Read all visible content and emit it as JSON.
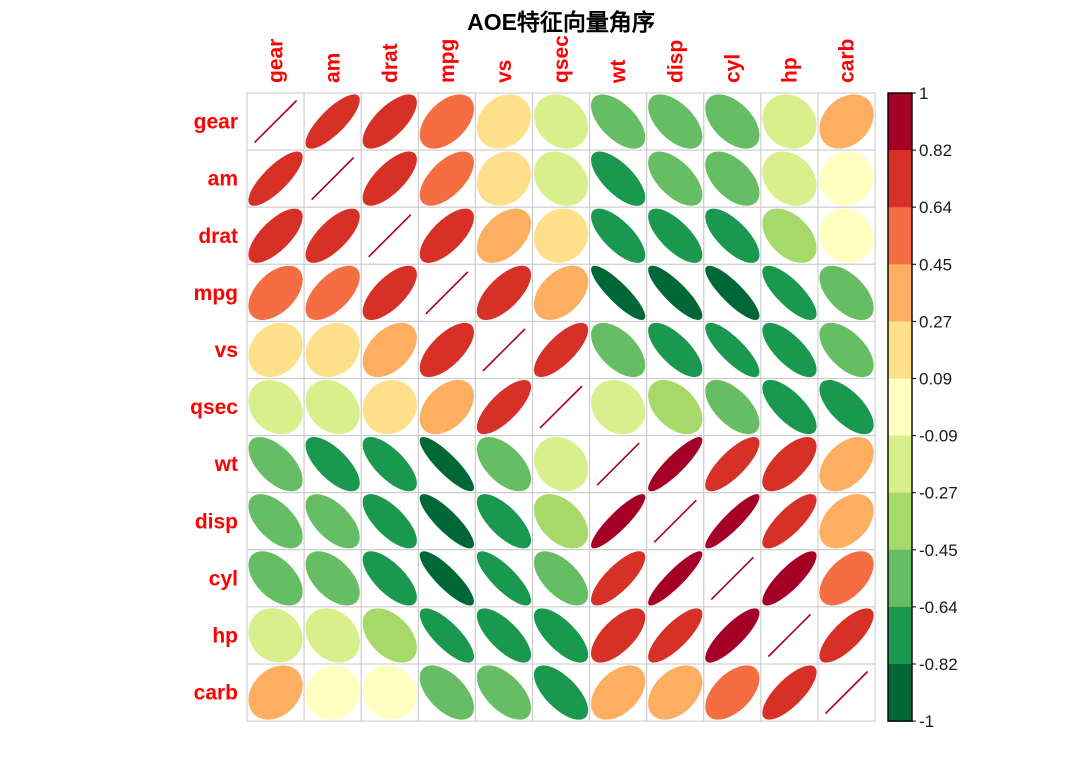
{
  "title": "AOE特征向量角序",
  "chart_data": {
    "type": "heatmap",
    "subtype": "correlation_ellipse_matrix",
    "ordering": "AOE",
    "title": "AOE特征向量角序",
    "variables": [
      "gear",
      "am",
      "drat",
      "mpg",
      "vs",
      "qsec",
      "wt",
      "disp",
      "cyl",
      "hp",
      "carb"
    ],
    "matrix": [
      [
        1.0,
        0.7941,
        0.6996,
        0.4803,
        0.206,
        -0.2127,
        -0.5832,
        -0.5556,
        -0.4927,
        -0.1257,
        0.2741
      ],
      [
        0.7941,
        1.0,
        0.7127,
        0.5998,
        0.1683,
        -0.2299,
        -0.6925,
        -0.5912,
        -0.5226,
        -0.2432,
        0.0575
      ],
      [
        0.6996,
        0.7127,
        1.0,
        0.6812,
        0.4403,
        0.0912,
        -0.7124,
        -0.7102,
        -0.6999,
        -0.4488,
        -0.0908
      ],
      [
        0.4803,
        0.5998,
        0.6812,
        1.0,
        0.664,
        0.4187,
        -0.8677,
        -0.8476,
        -0.8522,
        -0.7762,
        -0.5509
      ],
      [
        0.206,
        0.1683,
        0.4403,
        0.664,
        1.0,
        0.7445,
        -0.5549,
        -0.7104,
        -0.8108,
        -0.7231,
        -0.5696
      ],
      [
        -0.2127,
        -0.2299,
        0.0912,
        0.4187,
        0.7445,
        1.0,
        -0.1747,
        -0.4336,
        -0.5912,
        -0.7082,
        -0.6562
      ],
      [
        -0.5832,
        -0.6925,
        -0.7124,
        -0.8677,
        -0.5549,
        -0.1747,
        1.0,
        0.888,
        0.7825,
        0.6587,
        0.4276
      ],
      [
        -0.5556,
        -0.5912,
        -0.7102,
        -0.8476,
        -0.7104,
        -0.4336,
        0.888,
        1.0,
        0.902,
        0.7909,
        0.395
      ],
      [
        -0.4927,
        -0.5226,
        -0.6999,
        -0.8522,
        -0.8108,
        -0.5912,
        0.7825,
        0.902,
        1.0,
        0.8324,
        0.527
      ],
      [
        -0.1257,
        -0.2432,
        -0.4488,
        -0.7762,
        -0.7231,
        -0.7082,
        0.6587,
        0.7909,
        0.8324,
        1.0,
        0.7498
      ],
      [
        0.2741,
        0.0575,
        -0.0908,
        -0.5509,
        -0.5696,
        -0.6562,
        0.4276,
        0.395,
        0.527,
        0.7498,
        1.0
      ]
    ],
    "colorbar": {
      "tick_labels": [
        "1",
        "0.82",
        "0.64",
        "0.45",
        "0.27",
        "0.09",
        "-0.09",
        "-0.27",
        "-0.45",
        "-0.64",
        "-0.82",
        "-1"
      ],
      "range_top_to_bottom": [
        1,
        -1
      ],
      "palette_top_to_bottom": [
        "#a50026",
        "#d73027",
        "#f46d43",
        "#fdae61",
        "#fee08b",
        "#ffffbf",
        "#d9ef8b",
        "#a6d96a",
        "#66bd63",
        "#1a9850",
        "#006837"
      ]
    },
    "colors": {
      "variable_label": "#ff0000",
      "grid_line": "#c9c9c9",
      "diagonal_line": "#a50026",
      "colorbar_border": "#000000",
      "tick_text": "#1a1a1a",
      "title_text": "#000000",
      "background": "#ffffff"
    }
  }
}
